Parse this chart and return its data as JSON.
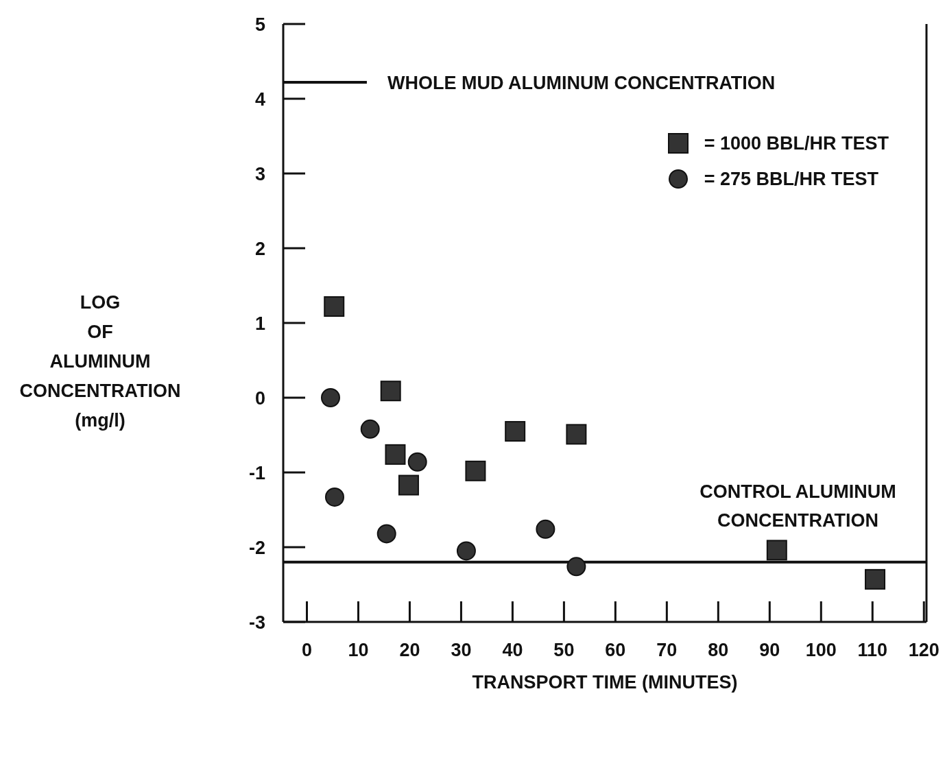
{
  "chart_data": {
    "type": "scatter",
    "xlabel": "TRANSPORT TIME (MINUTES)",
    "ylabel": "LOG\nOF\nALUMINUM\nCONCENTRATION\n(mg/l)",
    "xlim": [
      -4.6,
      120.5
    ],
    "xticks": [
      0,
      10,
      20,
      30,
      40,
      50,
      60,
      70,
      80,
      90,
      100,
      110,
      120
    ],
    "ylim": [
      -3,
      5
    ],
    "yticks": [
      -3,
      -2,
      -1,
      0,
      1,
      2,
      3,
      4,
      5
    ],
    "legend": "top right",
    "series": [
      {
        "name": "= 1000 BBL/HR TEST",
        "color": "#333333",
        "marker": "square",
        "x": [
          5.3,
          16.3,
          17.2,
          19.8,
          32.8,
          40.5,
          52.4,
          91.4,
          110.5
        ],
        "values": [
          1.22,
          0.09,
          -0.76,
          -1.17,
          -0.98,
          -0.45,
          -0.49,
          -2.04,
          -2.43
        ]
      },
      {
        "name": "= 275 BBL/HR TEST",
        "color": "#333333",
        "marker": "circle",
        "x": [
          4.6,
          5.4,
          12.3,
          15.5,
          21.5,
          31.0,
          46.4,
          52.4
        ],
        "values": [
          0.0,
          -1.33,
          -0.42,
          -1.82,
          -0.86,
          -2.05,
          -1.76,
          -2.26
        ]
      }
    ],
    "ref_lines": [
      {
        "axis": "y",
        "value": 4.22,
        "label": "WHOLE MUD ALUMINUM CONCENTRATION",
        "color": "#111111"
      },
      {
        "axis": "y",
        "value": -2.2,
        "label": "CONTROL ALUMINUM\nCONCENTRATION",
        "color": "#111111"
      }
    ]
  }
}
